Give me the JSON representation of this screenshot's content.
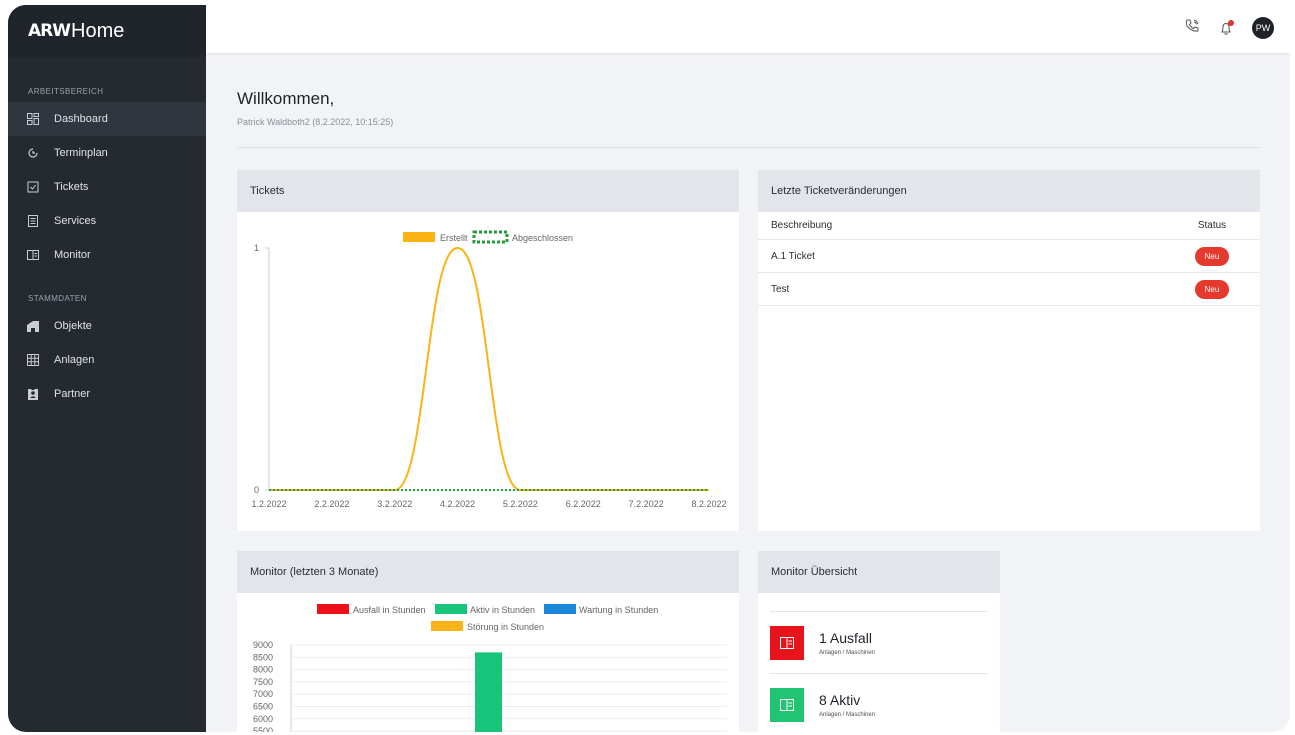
{
  "app": {
    "logo_mark": "ARW",
    "logo_text": "Home"
  },
  "sidebar": {
    "sections": [
      {
        "title": "ARBEITSBEREICH",
        "items": [
          {
            "label": "Dashboard",
            "icon": "dashboard-icon",
            "active": true
          },
          {
            "label": "Terminplan",
            "icon": "calendar-icon"
          },
          {
            "label": "Tickets",
            "icon": "ticket-icon"
          },
          {
            "label": "Services",
            "icon": "services-icon"
          },
          {
            "label": "Monitor",
            "icon": "monitor-icon"
          }
        ]
      },
      {
        "title": "STAMMDATEN",
        "items": [
          {
            "label": "Objekte",
            "icon": "building-icon"
          },
          {
            "label": "Anlagen",
            "icon": "grid-icon"
          },
          {
            "label": "Partner",
            "icon": "partner-icon"
          }
        ]
      }
    ]
  },
  "topbar": {
    "avatar_initials": "PW",
    "accent": "#e5322d"
  },
  "welcome": {
    "title": "Willkommen,",
    "subtitle": "Patrick Waldboth2 (8.2.2022, 10:15:25)"
  },
  "tickets_card": {
    "title": "Tickets"
  },
  "changes_card": {
    "title": "Letzte Ticketveränderungen",
    "columns": [
      "Beschreibung",
      "Status"
    ],
    "rows": [
      {
        "description": "A.1 Ticket",
        "status": "Neu"
      },
      {
        "description": "Test",
        "status": "Neu"
      }
    ]
  },
  "monitor_card": {
    "title": "Monitor (letzten 3 Monate)"
  },
  "overview_card": {
    "title": "Monitor Übersicht",
    "items": [
      {
        "title": "1 Ausfall",
        "sub": "Anlagen / Maschinen",
        "color": "#e8141c"
      },
      {
        "title": "8 Aktiv",
        "sub": "Anlagen / Maschinen",
        "color": "#20c472"
      }
    ]
  },
  "chart_data": [
    {
      "type": "line",
      "x": [
        "1.2.2022",
        "2.2.2022",
        "3.2.2022",
        "4.2.2022",
        "5.2.2022",
        "6.2.2022",
        "7.2.2022",
        "8.2.2022"
      ],
      "series": [
        {
          "name": "Erstellt",
          "values": [
            0,
            0,
            0,
            1,
            0,
            0,
            0,
            0
          ],
          "color": "#fbb316"
        },
        {
          "name": "Abgeschlossen",
          "values": [
            0,
            0,
            0,
            0,
            0,
            0,
            0,
            0
          ],
          "color": "#1f9d3a"
        }
      ],
      "yticks": [
        "0",
        "1"
      ],
      "ylim": [
        0,
        1
      ],
      "legend": "top-center"
    },
    {
      "type": "bar",
      "series": [
        {
          "name": "Ausfall in Stunden",
          "color": "#ee1018"
        },
        {
          "name": "Aktiv in Stunden",
          "color": "#18c47a",
          "value": 8700
        },
        {
          "name": "Wartung in Stunden",
          "color": "#1a87d9"
        },
        {
          "name": "Störung in Stunden",
          "color": "#fbb316"
        }
      ],
      "yticks": [
        "9000",
        "8500",
        "8000",
        "7500",
        "7000",
        "6500",
        "6000",
        "5500"
      ],
      "ylim": [
        5500,
        9000
      ],
      "legend": "top-center"
    }
  ]
}
